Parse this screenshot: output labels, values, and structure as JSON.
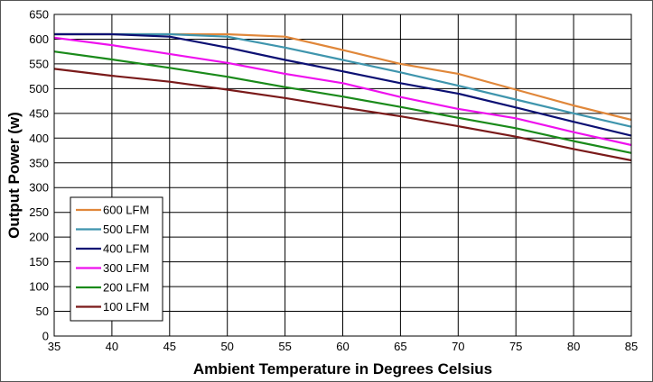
{
  "chart_data": {
    "type": "line",
    "xlabel": "Ambient Temperature in Degrees Celsius",
    "ylabel": "Output Power (w)",
    "xlim": [
      35,
      85
    ],
    "ylim": [
      0,
      650
    ],
    "xticks": [
      35,
      40,
      45,
      50,
      55,
      60,
      65,
      70,
      75,
      80,
      85
    ],
    "yticks": [
      0,
      50,
      100,
      150,
      200,
      250,
      300,
      350,
      400,
      450,
      500,
      550,
      600,
      650
    ],
    "grid": true,
    "legend_position": "lower-left",
    "x": [
      35,
      40,
      45,
      50,
      55,
      60,
      65,
      70,
      75,
      80,
      85
    ],
    "series": [
      {
        "name": "600 LFM",
        "color": "#e0873a",
        "values": [
          610,
          610,
          610,
          610,
          605,
          578,
          550,
          530,
          498,
          466,
          437
        ]
      },
      {
        "name": "500 LFM",
        "color": "#3f95ad",
        "values": [
          610,
          610,
          610,
          605,
          583,
          558,
          533,
          506,
          478,
          450,
          423
        ]
      },
      {
        "name": "400 LFM",
        "color": "#0c1073",
        "values": [
          610,
          610,
          605,
          583,
          558,
          535,
          511,
          490,
          462,
          433,
          405
        ]
      },
      {
        "name": "300 LFM",
        "color": "#ee11ee",
        "values": [
          603,
          588,
          570,
          552,
          530,
          511,
          483,
          459,
          440,
          412,
          386
        ]
      },
      {
        "name": "200 LFM",
        "color": "#1a8a1a",
        "values": [
          575,
          559,
          542,
          524,
          503,
          484,
          463,
          441,
          420,
          394,
          370
        ]
      },
      {
        "name": "100 LFM",
        "color": "#7a1a1a",
        "values": [
          540,
          526,
          514,
          498,
          481,
          462,
          444,
          424,
          403,
          378,
          355
        ]
      }
    ]
  }
}
